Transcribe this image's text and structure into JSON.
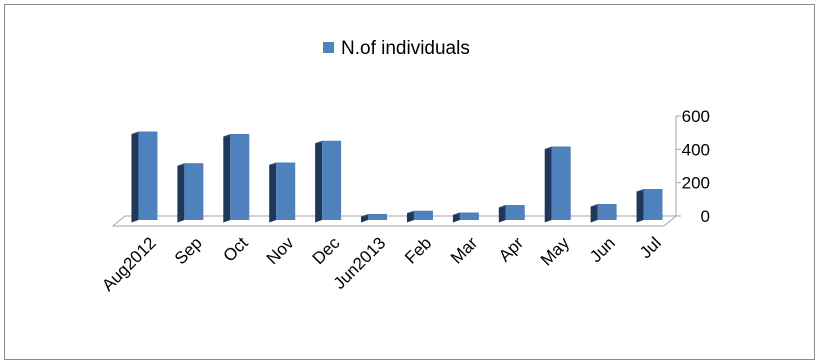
{
  "chart_data": {
    "type": "bar",
    "style": "3d-column",
    "series": [
      {
        "name": "N.of individuals",
        "values": [
          530,
          340,
          515,
          345,
          475,
          35,
          55,
          45,
          90,
          440,
          95,
          185
        ]
      }
    ],
    "categories": [
      "Aug2012",
      "Sep",
      "Oct",
      "Nov",
      "Dec",
      "Jun2013",
      "Feb",
      "Mar",
      "Apr",
      "May",
      "Jun",
      "Jul"
    ],
    "yticks": [
      0,
      200,
      400,
      600
    ],
    "ylim": [
      0,
      600
    ],
    "yaxis_position": "right",
    "legend_position": "top",
    "grid": false,
    "colors": {
      "bar_front": "#4f81bd",
      "bar_side": "#1f3859",
      "bar_top": "#2d4d74",
      "axis": "#a6a6a6"
    }
  }
}
